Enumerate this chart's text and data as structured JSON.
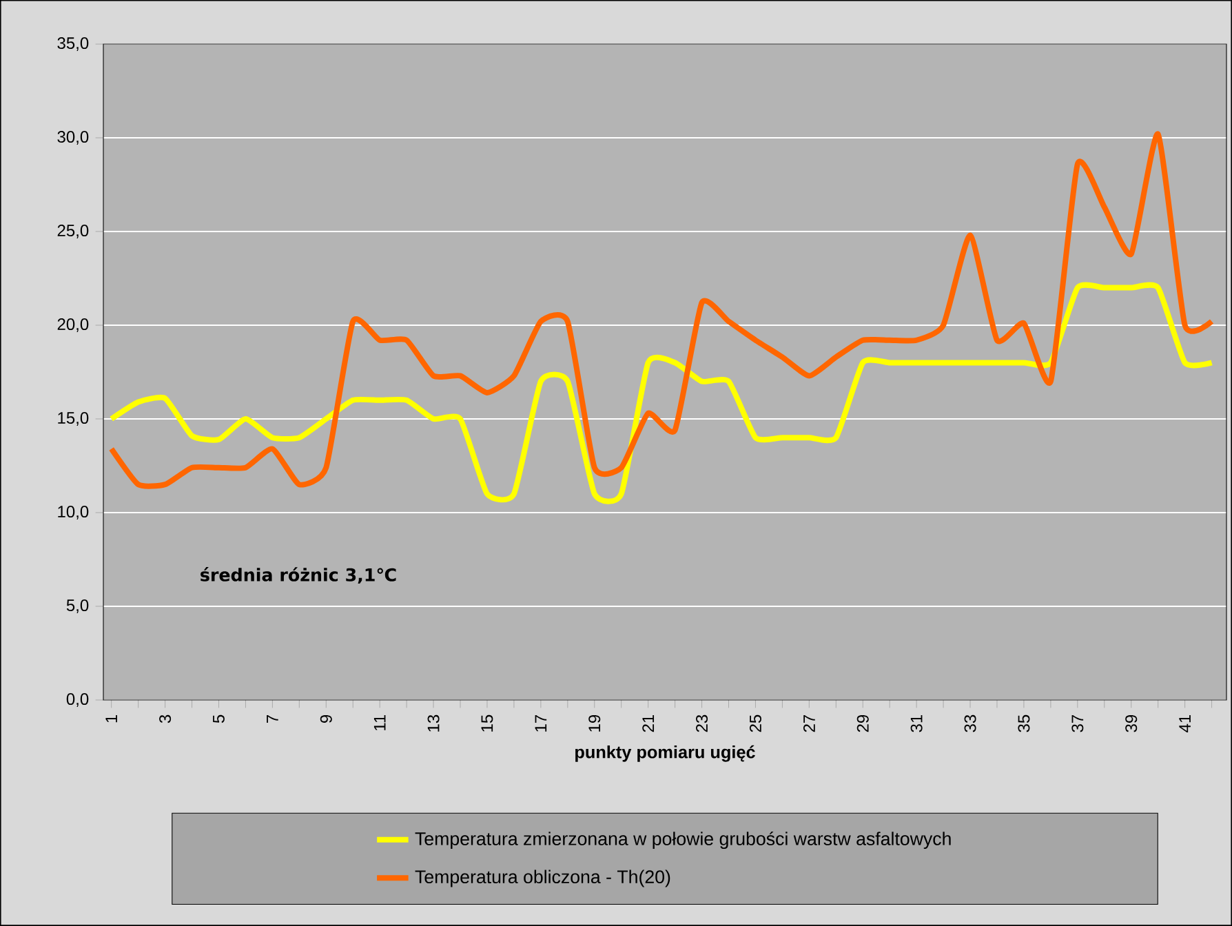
{
  "chart_data": {
    "type": "line",
    "xlabel": "punkty pomiaru ugięć",
    "categories": [
      "1",
      null,
      "3",
      null,
      "5",
      null,
      "7",
      null,
      "9",
      null,
      "11",
      null,
      "13",
      null,
      "15",
      null,
      "17",
      null,
      "19",
      null,
      "21",
      null,
      "23",
      null,
      "25",
      null,
      "27",
      null,
      "29",
      null,
      "31",
      null,
      "33",
      null,
      "35",
      null,
      "37",
      null,
      "39",
      null,
      "41",
      null
    ],
    "series": [
      {
        "name": "Temperatura zmierzonana w połowie grubości warstw asfaltowych",
        "color": "#ffff00",
        "values": [
          15.0,
          15.9,
          16.1,
          14.1,
          13.9,
          15.0,
          14.0,
          14.0,
          15.0,
          16.0,
          16.0,
          16.0,
          15.0,
          15.0,
          11.0,
          11.0,
          17.0,
          17.0,
          11.0,
          11.0,
          18.0,
          18.0,
          17.0,
          17.0,
          14.0,
          14.0,
          14.0,
          14.0,
          18.0,
          18.0,
          18.0,
          18.0,
          18.0,
          18.0,
          18.0,
          18.0,
          22.0,
          22.0,
          22.0,
          22.0,
          18.0,
          18.0
        ]
      },
      {
        "name": "Temperatura obliczona - Th(20)",
        "color": "#ff6600",
        "values": [
          13.4,
          11.5,
          11.5,
          12.4,
          12.4,
          12.4,
          13.4,
          11.5,
          12.4,
          20.2,
          19.2,
          19.2,
          17.3,
          17.3,
          16.4,
          17.3,
          20.2,
          20.2,
          12.4,
          12.4,
          15.3,
          14.4,
          21.2,
          20.2,
          19.2,
          18.3,
          17.3,
          18.3,
          19.2,
          19.2,
          19.2,
          20.0,
          24.8,
          19.2,
          20.1,
          17.0,
          28.6,
          26.3,
          23.8,
          30.2,
          20.0,
          20.2
        ]
      }
    ],
    "ylim": [
      0,
      35
    ],
    "yticks": [
      {
        "value": 0,
        "label": "0,0"
      },
      {
        "value": 5,
        "label": "5,0"
      },
      {
        "value": 10,
        "label": "10,0"
      },
      {
        "value": 15,
        "label": "15,0"
      },
      {
        "value": 20,
        "label": "20,0"
      },
      {
        "value": 25,
        "label": "25,0"
      },
      {
        "value": 30,
        "label": "30,0"
      },
      {
        "value": 35,
        "label": "35,0"
      }
    ],
    "grid": "y",
    "legend": "bottom",
    "annotations": [
      "średnia różnic 3,1℃"
    ]
  }
}
